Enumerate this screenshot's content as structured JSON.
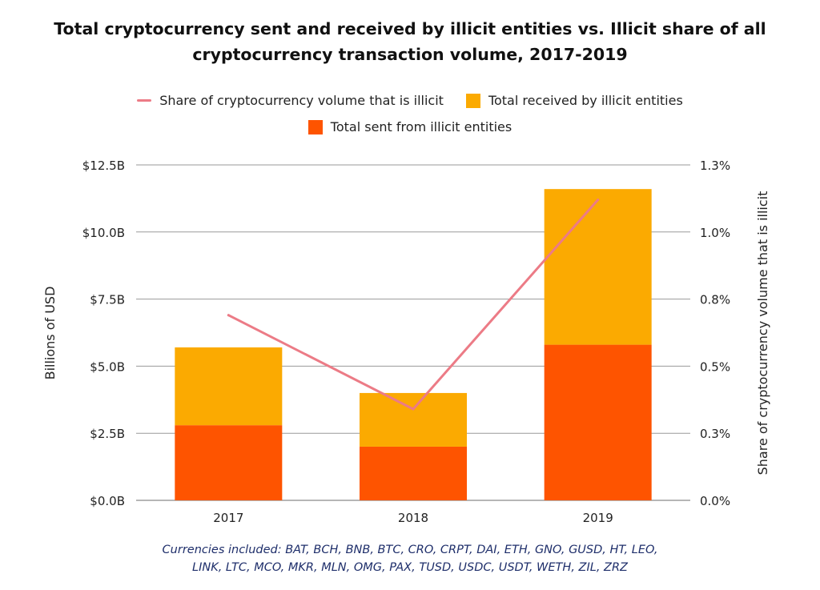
{
  "title_lines": [
    "Total cryptocurrency sent and received by illicit entities vs. Illicit share of all",
    "cryptocurrency transaction volume, 2017-2019"
  ],
  "colors": {
    "share_line": "#ec7b86",
    "received": "#fbaa01",
    "sent": "#fe5400",
    "grid": "#9a9a9a",
    "footnote": "#1f2f6b"
  },
  "legend": [
    {
      "label": "Share of cryptocurrency volume that is illicit",
      "kind": "line",
      "color": "#ec7b86"
    },
    {
      "label": "Total received by illicit entities",
      "kind": "box",
      "color": "#fbaa01"
    },
    {
      "label": "Total sent from illicit entities",
      "kind": "box",
      "color": "#fe5400"
    }
  ],
  "chart_data": {
    "type": "bar",
    "stacked": true,
    "title": "Total cryptocurrency sent and received by illicit entities vs. Illicit share of all cryptocurrency transaction volume, 2017-2019",
    "categories": [
      "2017",
      "2018",
      "2019"
    ],
    "ylabel": "Billions of USD",
    "y2label": "Share of cryptocurrency volume that is illicit",
    "ylim": [
      0,
      12.5
    ],
    "y2lim": [
      0,
      1.25
    ],
    "yticks": [
      "$0.0B",
      "$2.5B",
      "$5.0B",
      "$7.5B",
      "$10.0B",
      "$12.5B"
    ],
    "y2ticks": [
      "0.0%",
      "0.3%",
      "0.5%",
      "0.8%",
      "1.0%",
      "1.3%"
    ],
    "grid": true,
    "legend_position": "top-center",
    "series": [
      {
        "name": "Total sent from illicit entities",
        "type": "bar",
        "axis": "left",
        "values": [
          2.8,
          2.0,
          5.8
        ]
      },
      {
        "name": "Total received by illicit entities",
        "type": "bar",
        "axis": "left",
        "values": [
          2.9,
          2.0,
          5.8
        ]
      },
      {
        "name": "Share of cryptocurrency volume that is illicit",
        "type": "line",
        "axis": "right",
        "values": [
          0.69,
          0.34,
          1.12
        ]
      }
    ]
  },
  "footnote_lines": [
    "Currencies included: BAT, BCH, BNB, BTC, CRO, CRPT, DAI, ETH, GNO, GUSD, HT, LEO,",
    "LINK, LTC, MCO, MKR, MLN, OMG, PAX, TUSD, USDC, USDT, WETH, ZIL, ZRZ"
  ]
}
